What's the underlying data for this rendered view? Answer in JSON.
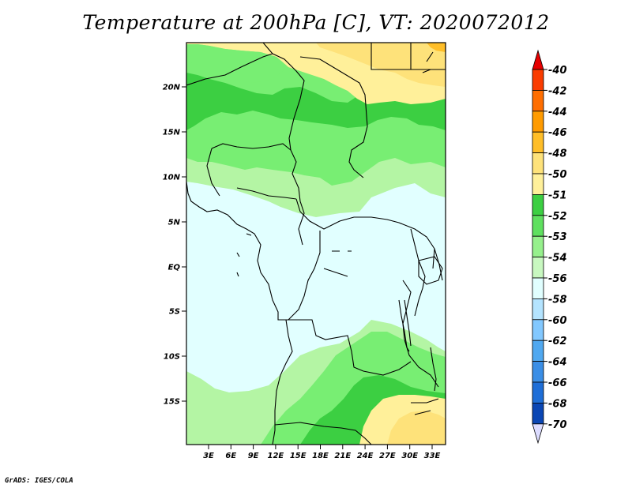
{
  "map": {
    "title": "Temperature at 200hPa [C], VT: 2020072012",
    "credit": "GrADS: IGES/COLA",
    "lat_labels": [
      "20N",
      "15N",
      "10N",
      "5N",
      "EQ",
      "5S",
      "10S",
      "15S"
    ],
    "lon_labels": [
      "3E",
      "6E",
      "9E",
      "12E",
      "15E",
      "18E",
      "21E",
      "24E",
      "27E",
      "30E",
      "33E"
    ],
    "colors": {
      "yellow": "#fff09a",
      "orange_yellow": "#fee27a",
      "green_light": "#b4f5a4",
      "green_mid": "#78ee73",
      "green_dark": "#3ccf42",
      "cyan_pale": "#e1ffff"
    }
  },
  "legend": {
    "labels": [
      "-40",
      "-42",
      "-44",
      "-46",
      "-48",
      "-50",
      "-51",
      "-52",
      "-53",
      "-54",
      "-56",
      "-58",
      "-60",
      "-62",
      "-64",
      "-66",
      "-68",
      "-70"
    ],
    "colors": [
      "#fa3c00",
      "#ff6e00",
      "#ff9b00",
      "#ffbe28",
      "#fee27a",
      "#fff09a",
      "#3ccf42",
      "#5fe05f",
      "#96f08c",
      "#c8f8c0",
      "#e1ffff",
      "#b4e4ff",
      "#82c8ff",
      "#50a8f0",
      "#3a8ee6",
      "#1e6ed7",
      "#0a46b4",
      "#0a1e78"
    ],
    "top_arrow_color": "#e60000",
    "bottom_arrow_color": "#dcdcff"
  }
}
